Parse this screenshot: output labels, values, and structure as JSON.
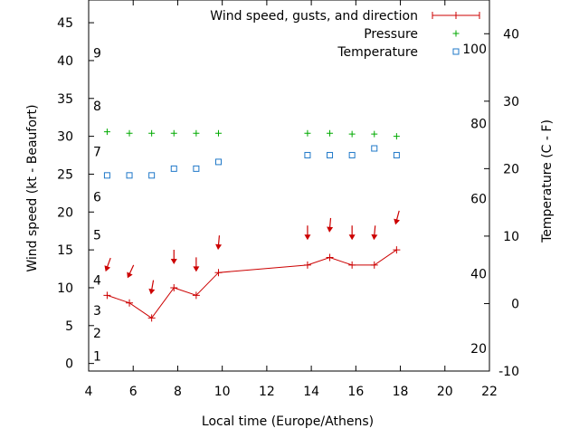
{
  "chart_data": {
    "type": "line",
    "xlabel": "Local time (Europe/Athens)",
    "ylabel": "Wind speed (kt - Beaufort)",
    "y2label": "Temperature (C - F)",
    "xlim": [
      4,
      22
    ],
    "ylim": [
      -1,
      48
    ],
    "y2lim": [
      -10,
      45
    ],
    "x_ticks": [
      4,
      6,
      8,
      10,
      12,
      14,
      16,
      18,
      20,
      22
    ],
    "y_ticks": [
      0,
      5,
      10,
      15,
      20,
      25,
      30,
      35,
      40,
      45
    ],
    "y2_ticks": [
      -10,
      0,
      10,
      20,
      30,
      40
    ],
    "beaufort_labels": [
      {
        "label": "1",
        "value": 1
      },
      {
        "label": "2",
        "value": 4
      },
      {
        "label": "3",
        "value": 7
      },
      {
        "label": "4",
        "value": 11
      },
      {
        "label": "5",
        "value": 17
      },
      {
        "label": "6",
        "value": 22
      },
      {
        "label": "7",
        "value": 28
      },
      {
        "label": "8",
        "value": 34
      },
      {
        "label": "9",
        "value": 41
      }
    ],
    "fahrenheit_labels": [
      {
        "label": "20",
        "value": 20
      },
      {
        "label": "40",
        "value": 40
      },
      {
        "label": "60",
        "value": 60
      },
      {
        "label": "80",
        "value": 80
      },
      {
        "label": "100",
        "value": 100
      }
    ],
    "legend_position": "top-right",
    "series": [
      {
        "name": "Wind speed, gusts, and direction",
        "color": "#cc0000",
        "x": [
          4.83,
          5.83,
          6.83,
          7.83,
          8.83,
          9.83,
          13.83,
          14.83,
          15.83,
          16.83,
          17.83
        ],
        "values": [
          9,
          8,
          6,
          10,
          9,
          12,
          13,
          14,
          13,
          13,
          15
        ],
        "arrow_y": [
          12.7,
          11.8,
          9.7,
          13.7,
          12.7,
          15.6,
          16.9,
          17.9,
          16.9,
          16.9,
          18.9
        ],
        "arrow_direction_deg": [
          20,
          25,
          10,
          0,
          0,
          5,
          0,
          5,
          0,
          5,
          15
        ]
      },
      {
        "name": "Pressure",
        "color": "#00aa00",
        "x": [
          4.83,
          5.83,
          6.83,
          7.83,
          8.83,
          9.83,
          13.83,
          14.83,
          15.83,
          16.83,
          17.83
        ],
        "values": [
          30.6,
          30.4,
          30.4,
          30.4,
          30.4,
          30.4,
          30.4,
          30.4,
          30.3,
          30.3,
          30.0
        ]
      },
      {
        "name": "Temperature",
        "color": "#1f78c8",
        "axis": "y2",
        "x": [
          4.83,
          5.83,
          6.83,
          7.83,
          8.83,
          9.83,
          13.83,
          14.83,
          15.83,
          16.83,
          17.83
        ],
        "values": [
          19,
          19,
          19,
          20,
          20,
          21,
          22,
          22,
          22,
          23,
          22
        ]
      }
    ]
  }
}
